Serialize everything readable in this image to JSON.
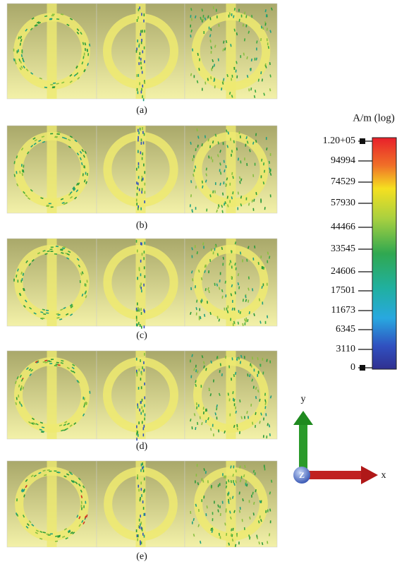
{
  "panels": [
    {
      "label": "(a)"
    },
    {
      "label": "(b)"
    },
    {
      "label": "(c)"
    },
    {
      "label": "(d)"
    },
    {
      "label": "(e)"
    }
  ],
  "colorbar": {
    "title": "A/m (log)",
    "ticks": [
      "1.20+05",
      "94994",
      "74529",
      "57930",
      "44466",
      "33545",
      "24606",
      "17501",
      "11673",
      "6345",
      "3110",
      "0"
    ]
  },
  "axes": {
    "y": "y",
    "x": "x",
    "z": "Z"
  }
}
